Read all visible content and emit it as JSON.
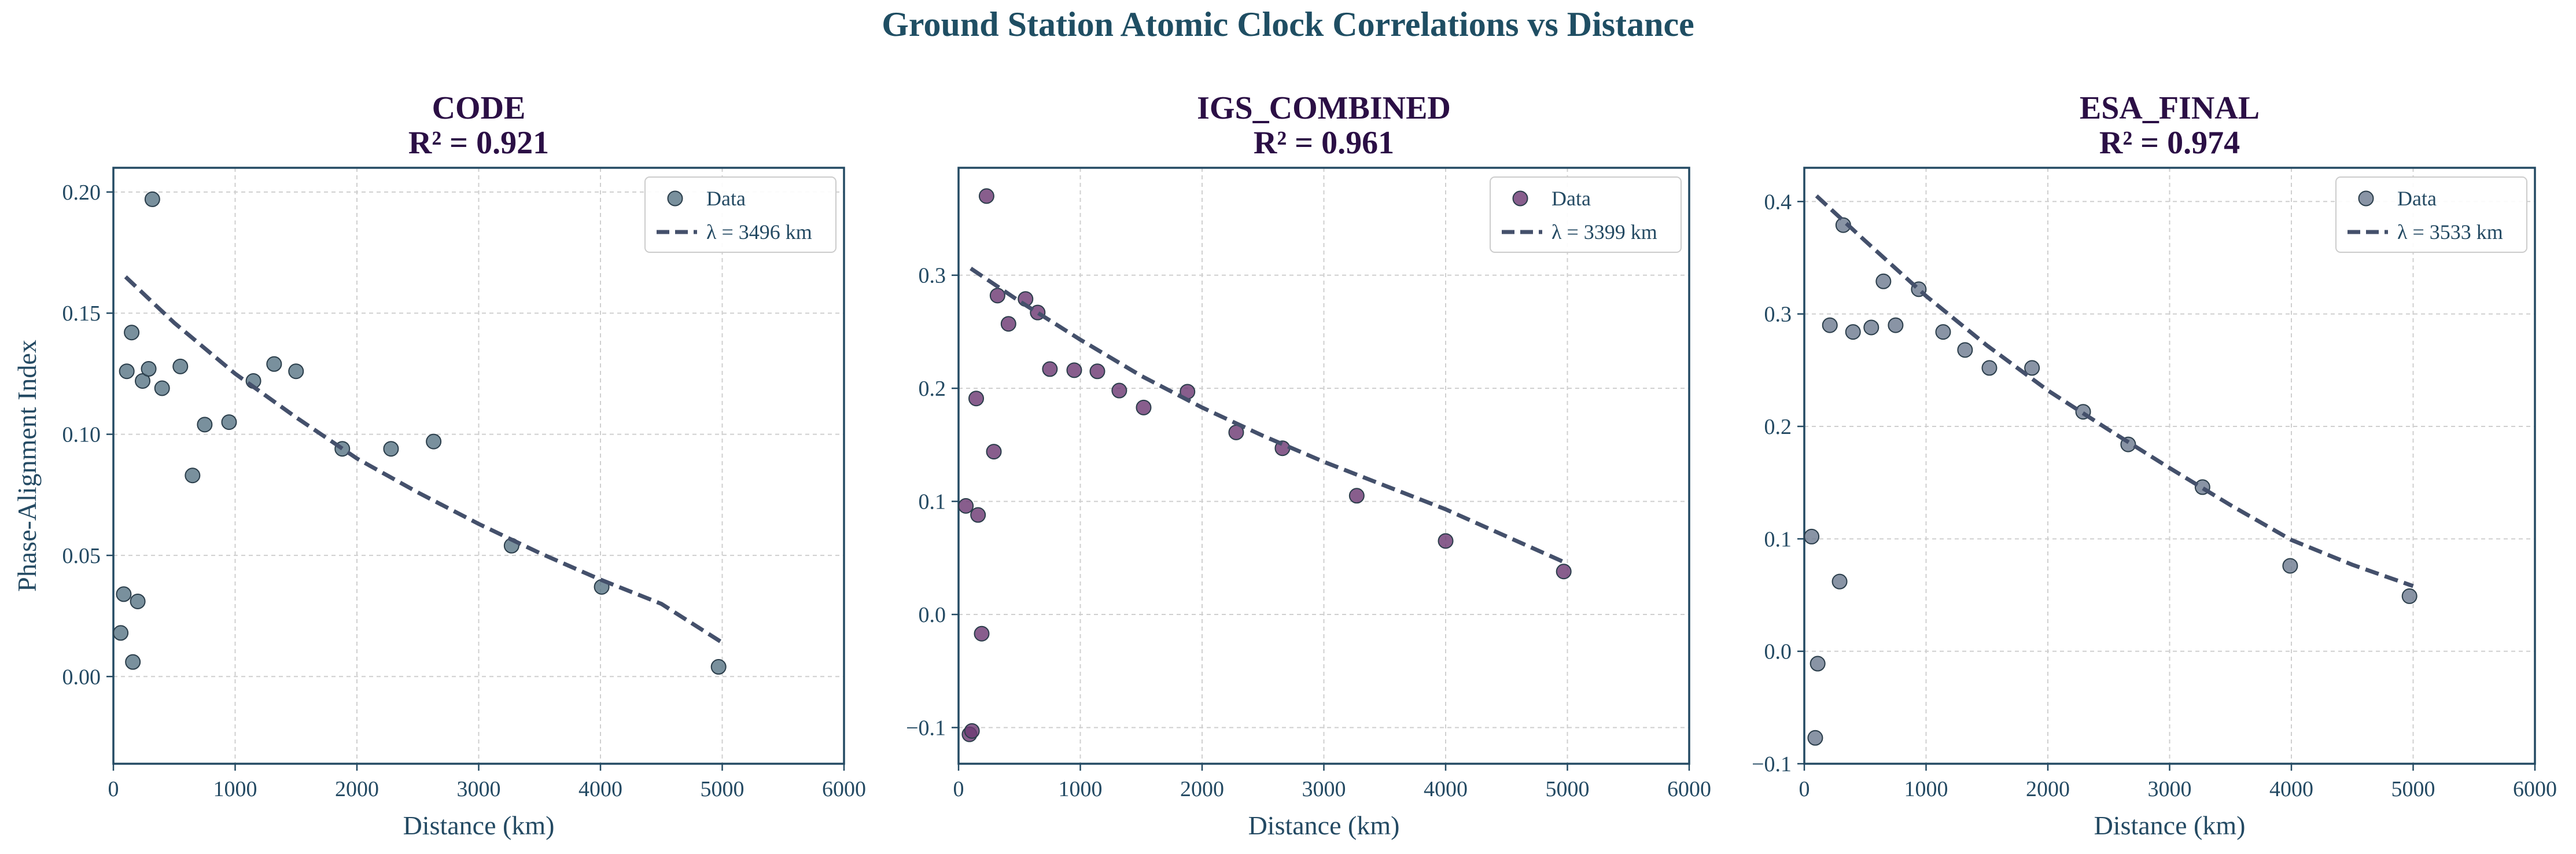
{
  "title": "Ground Station Atomic Clock Correlations vs Distance",
  "colors": {
    "axis": "#244a63",
    "fit": "#44506b",
    "grid": "#cfcfcf"
  },
  "chart_data": [
    {
      "type": "scatter",
      "title": "CODE",
      "subtitle": "R² = 0.921",
      "xlabel": "Distance (km)",
      "ylabel": "Phase-Alignment Index",
      "xlim": [
        0,
        6000
      ],
      "ylim": [
        -0.036,
        0.21
      ],
      "xticks": [
        0,
        1000,
        2000,
        3000,
        4000,
        5000,
        6000
      ],
      "yticks": [
        0.0,
        0.05,
        0.1,
        0.15,
        0.2
      ],
      "ytick_labels": [
        "0.00",
        "0.05",
        "0.10",
        "0.15",
        "0.20"
      ],
      "grid": true,
      "legend_position": "top-right",
      "point_color": "#5b7888",
      "series": [
        {
          "name": "Data",
          "x": [
            60,
            85,
            110,
            150,
            160,
            200,
            240,
            290,
            320,
            400,
            550,
            650,
            750,
            950,
            1150,
            1320,
            1500,
            1880,
            2280,
            2630,
            3270,
            4010,
            4970
          ],
          "y": [
            0.018,
            0.034,
            0.126,
            0.142,
            0.006,
            0.031,
            0.122,
            0.127,
            0.197,
            0.119,
            0.128,
            0.083,
            0.104,
            0.105,
            0.122,
            0.129,
            0.126,
            0.094,
            0.094,
            0.097,
            0.054,
            0.037,
            0.004
          ]
        }
      ],
      "fit": {
        "name": "λ = 3496 km",
        "x": [
          100,
          500,
          1000,
          1500,
          2000,
          2500,
          3000,
          3500,
          4000,
          4500,
          5000
        ],
        "y": [
          0.165,
          0.146,
          0.125,
          0.107,
          0.09,
          0.076,
          0.063,
          0.051,
          0.04,
          0.03,
          0.014
        ]
      }
    },
    {
      "type": "scatter",
      "title": "IGS_COMBINED",
      "subtitle": "R² = 0.961",
      "xlabel": "Distance (km)",
      "ylabel": "",
      "xlim": [
        0,
        6000
      ],
      "ylim": [
        -0.132,
        0.395
      ],
      "xticks": [
        0,
        1000,
        2000,
        3000,
        4000,
        5000,
        6000
      ],
      "yticks": [
        -0.1,
        0.0,
        0.1,
        0.2,
        0.3
      ],
      "ytick_labels": [
        "−0.1",
        "0.0",
        "0.1",
        "0.2",
        "0.3"
      ],
      "grid": true,
      "legend_position": "top-right",
      "point_color": "#6e3b74",
      "series": [
        {
          "name": "Data",
          "x": [
            60,
            90,
            110,
            145,
            160,
            190,
            230,
            290,
            320,
            410,
            550,
            650,
            750,
            950,
            1140,
            1320,
            1520,
            1880,
            2280,
            2660,
            3270,
            4000,
            4970
          ],
          "y": [
            0.096,
            -0.106,
            -0.103,
            0.191,
            0.088,
            -0.017,
            0.37,
            0.144,
            0.282,
            0.257,
            0.279,
            0.267,
            0.217,
            0.216,
            0.215,
            0.198,
            0.183,
            0.197,
            0.161,
            0.147,
            0.105,
            0.065,
            0.038
          ]
        }
      ],
      "fit": {
        "name": "λ = 3399 km",
        "x": [
          100,
          500,
          1000,
          1500,
          2000,
          2500,
          3000,
          3500,
          4000,
          4500,
          5000
        ],
        "y": [
          0.306,
          0.277,
          0.243,
          0.211,
          0.183,
          0.158,
          0.135,
          0.114,
          0.093,
          0.069,
          0.045
        ]
      }
    },
    {
      "type": "scatter",
      "title": "ESA_FINAL",
      "subtitle": "R² = 0.974",
      "xlabel": "Distance (km)",
      "ylabel": "",
      "xlim": [
        0,
        6000
      ],
      "ylim": [
        -0.1,
        0.43
      ],
      "xticks": [
        0,
        1000,
        2000,
        3000,
        4000,
        5000,
        6000
      ],
      "yticks": [
        -0.1,
        0.0,
        0.1,
        0.2,
        0.3,
        0.4
      ],
      "ytick_labels": [
        "−0.1",
        "0.0",
        "0.1",
        "0.2",
        "0.3",
        "0.4"
      ],
      "grid": true,
      "legend_position": "top-right",
      "point_color": "#6f7c91",
      "series": [
        {
          "name": "Data",
          "x": [
            60,
            90,
            110,
            210,
            290,
            320,
            400,
            550,
            650,
            750,
            940,
            1140,
            1320,
            1520,
            1870,
            2290,
            2660,
            3270,
            3990,
            4970
          ],
          "y": [
            0.102,
            -0.077,
            -0.011,
            0.29,
            0.062,
            0.379,
            0.284,
            0.288,
            0.329,
            0.29,
            0.322,
            0.284,
            0.268,
            0.252,
            0.252,
            0.213,
            0.184,
            0.146,
            0.076,
            0.049
          ]
        }
      ],
      "fit": {
        "name": "λ = 3533 km",
        "x": [
          100,
          500,
          1000,
          1500,
          2000,
          2500,
          3000,
          3500,
          4000,
          4500,
          5000
        ],
        "y": [
          0.405,
          0.365,
          0.316,
          0.272,
          0.232,
          0.197,
          0.163,
          0.13,
          0.099,
          0.077,
          0.058
        ]
      }
    }
  ]
}
